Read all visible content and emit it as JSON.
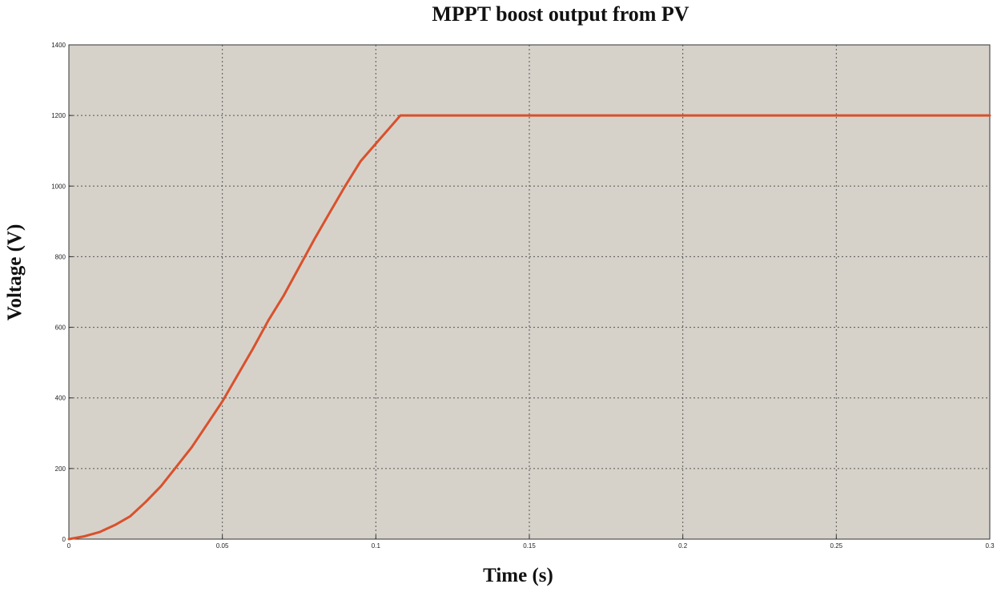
{
  "chart_data": {
    "type": "line",
    "title": "MPPT boost output from PV",
    "xlabel": "Time (s)",
    "ylabel": "Voltage (V)",
    "xlim": [
      0,
      0.3
    ],
    "ylim": [
      0,
      1400
    ],
    "xticks": [
      0,
      0.05,
      0.1,
      0.15,
      0.2,
      0.25,
      0.3
    ],
    "xtick_labels": [
      "0",
      "0.05",
      "0.1",
      "0.15",
      "0.2",
      "0.25",
      "0.3"
    ],
    "yticks": [
      0,
      200,
      400,
      600,
      800,
      1000,
      1200,
      1400
    ],
    "ytick_labels": [
      "0",
      "200",
      "400",
      "600",
      "800",
      "1000",
      "1200",
      "1400"
    ],
    "grid": true,
    "legend": "none",
    "colors": {
      "plot_background": "#d6d2ca",
      "line": "#d9512c",
      "grid": "#555555",
      "frame": "#333333"
    },
    "series": [
      {
        "x": [
          0,
          0.005,
          0.01,
          0.015,
          0.02,
          0.025,
          0.03,
          0.035,
          0.04,
          0.045,
          0.05,
          0.055,
          0.06,
          0.065,
          0.07,
          0.075,
          0.08,
          0.085,
          0.09,
          0.095,
          0.1,
          0.105,
          0.108,
          0.15,
          0.2,
          0.25,
          0.3
        ],
        "y": [
          0,
          8,
          20,
          40,
          65,
          105,
          150,
          205,
          260,
          325,
          390,
          465,
          540,
          620,
          690,
          770,
          850,
          925,
          1000,
          1070,
          1120,
          1170,
          1200,
          1200,
          1200,
          1200,
          1200
        ]
      }
    ]
  }
}
